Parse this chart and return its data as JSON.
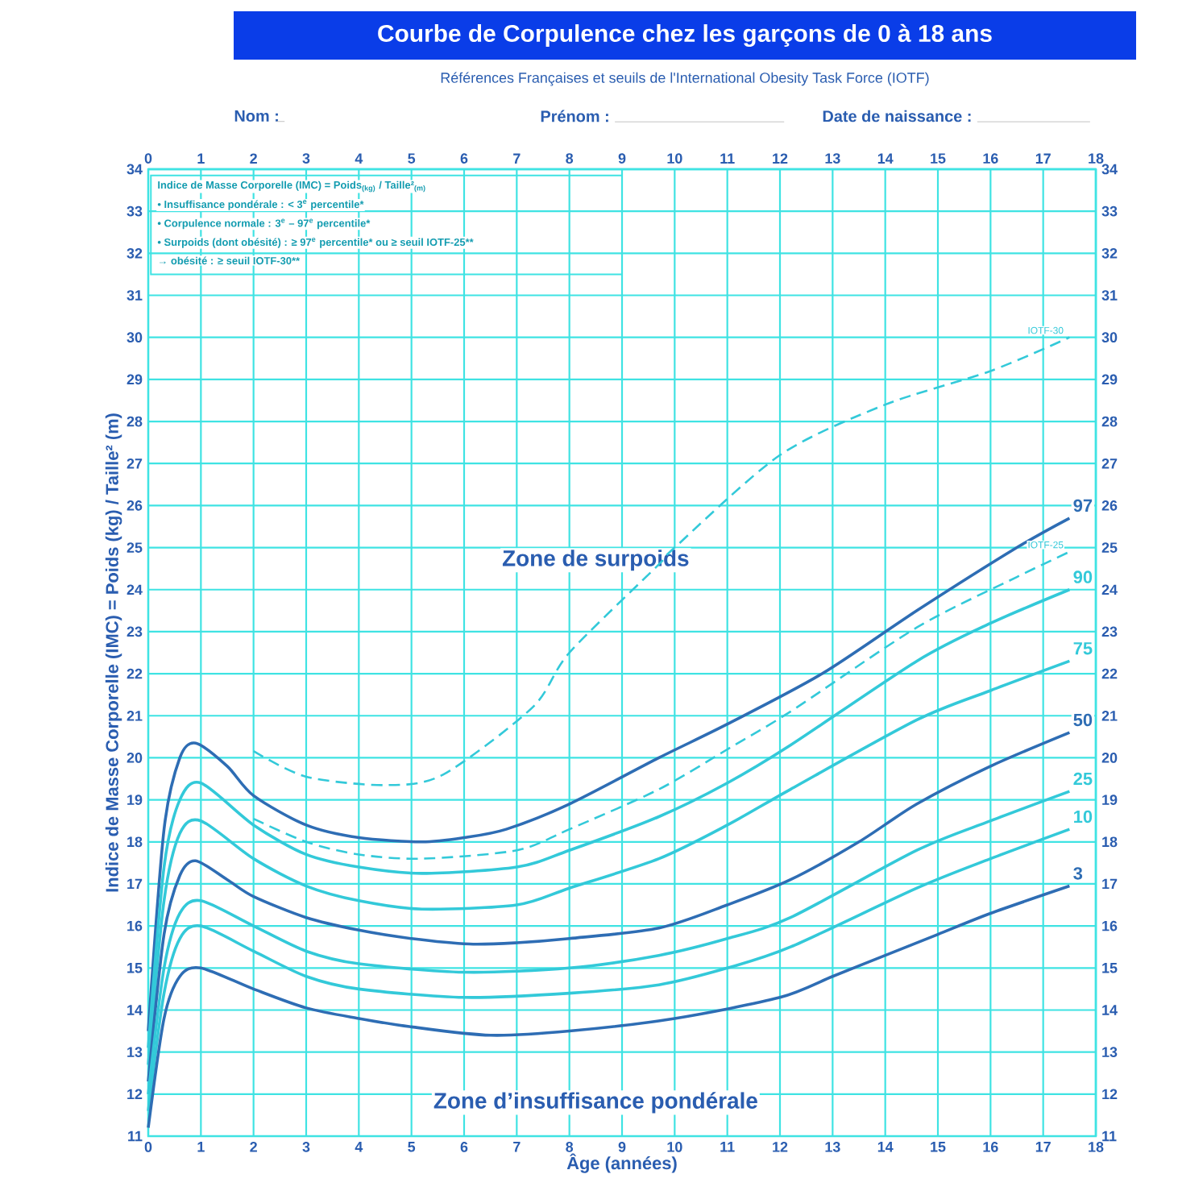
{
  "chart_data": {
    "type": "line",
    "title": "Courbe de Corpulence chez les garçons de 0 à 18 ans",
    "subtitle": "Références Françaises et seuils de l'International Obesity Task Force (IOTF)",
    "xlabel": "Âge (années)",
    "ylabel": "Indice de Masse Corporelle (IMC) = Poids (kg) / Taille² (m)",
    "xlim": [
      0,
      18
    ],
    "xticks": [
      0,
      1,
      2,
      3,
      4,
      5,
      6,
      7,
      8,
      9,
      10,
      11,
      12,
      13,
      14,
      15,
      16,
      17,
      18
    ],
    "x2lim": [
      0,
      18
    ],
    "x2ticks": [
      0,
      1,
      2,
      3,
      4,
      5,
      6,
      7,
      8,
      9,
      10,
      11,
      12,
      13,
      14,
      15,
      16,
      17,
      18
    ],
    "ylim": [
      11,
      34
    ],
    "yticks": [
      11,
      12,
      13,
      14,
      15,
      16,
      17,
      18,
      19,
      20,
      21,
      22,
      23,
      24,
      25,
      26,
      27,
      28,
      29,
      30,
      31,
      32,
      33,
      34
    ],
    "y2lim": [
      11,
      34
    ],
    "y2ticks": [
      11,
      12,
      13,
      14,
      15,
      16,
      17,
      18,
      19,
      20,
      21,
      22,
      23,
      24,
      25,
      26,
      27,
      28,
      29,
      30,
      31,
      32,
      33,
      34
    ],
    "grid": true,
    "series": [
      {
        "name": "97",
        "color": "#2e6db4",
        "line_style": "solid",
        "x": [
          0,
          0.3,
          0.6,
          0.9,
          1.5,
          2,
          3,
          4,
          5.2,
          6,
          6.8,
          8,
          9.7,
          11,
          12.8,
          14.6,
          16.5,
          17.5
        ],
        "values": [
          13.5,
          18.3,
          20.0,
          20.35,
          19.8,
          19.1,
          18.4,
          18.1,
          18.0,
          18.1,
          18.3,
          18.9,
          20.0,
          20.8,
          22.0,
          23.5,
          25.0,
          25.7
        ]
      },
      {
        "name": "90",
        "color": "#33c9d9",
        "line_style": "solid",
        "x": [
          0,
          0.3,
          0.6,
          1,
          2,
          3,
          4,
          5.2,
          7,
          8,
          9.7,
          11,
          12.2,
          14.6,
          16,
          17.5
        ],
        "values": [
          13.1,
          17.4,
          19.0,
          19.4,
          18.4,
          17.7,
          17.4,
          17.25,
          17.4,
          17.8,
          18.6,
          19.4,
          20.3,
          22.3,
          23.2,
          24.0
        ]
      },
      {
        "name": "75",
        "color": "#33c9d9",
        "line_style": "solid",
        "x": [
          0,
          0.3,
          0.6,
          1,
          2,
          3,
          4,
          5.2,
          7,
          8,
          9.7,
          11,
          12.2,
          14.6,
          16,
          17.5
        ],
        "values": [
          12.7,
          16.6,
          18.2,
          18.5,
          17.6,
          16.95,
          16.6,
          16.4,
          16.5,
          16.9,
          17.6,
          18.4,
          19.25,
          20.9,
          21.6,
          22.3
        ]
      },
      {
        "name": "50",
        "color": "#2e6db4",
        "line_style": "solid",
        "x": [
          0,
          0.3,
          0.6,
          0.9,
          1.5,
          2,
          3,
          4,
          5,
          6.1,
          7,
          8,
          9.7,
          11,
          12.2,
          13.5,
          14.6,
          16,
          17.5
        ],
        "values": [
          12.3,
          15.8,
          17.2,
          17.55,
          17.1,
          16.7,
          16.2,
          15.9,
          15.7,
          15.57,
          15.6,
          15.7,
          15.95,
          16.5,
          17.1,
          18.0,
          18.9,
          19.8,
          20.6
        ]
      },
      {
        "name": "25",
        "color": "#33c9d9",
        "line_style": "solid",
        "x": [
          0,
          0.3,
          0.6,
          1,
          2,
          3,
          4,
          6,
          8,
          9.7,
          11,
          12.2,
          14.6,
          16,
          17.5
        ],
        "values": [
          12.0,
          15.0,
          16.3,
          16.6,
          16.0,
          15.4,
          15.1,
          14.9,
          15.0,
          15.3,
          15.7,
          16.2,
          17.8,
          18.5,
          19.2
        ]
      },
      {
        "name": "10",
        "color": "#33c9d9",
        "line_style": "solid",
        "x": [
          0,
          0.3,
          0.6,
          1,
          2,
          3,
          4,
          6,
          8,
          9.7,
          11,
          12.2,
          14.6,
          16,
          17.5
        ],
        "values": [
          11.6,
          14.4,
          15.7,
          16.0,
          15.4,
          14.8,
          14.5,
          14.3,
          14.4,
          14.6,
          15.0,
          15.5,
          16.9,
          17.6,
          18.3
        ]
      },
      {
        "name": "3",
        "color": "#2e6db4",
        "line_style": "solid",
        "x": [
          0,
          0.3,
          0.6,
          1,
          2,
          3,
          4,
          5,
          6.5,
          8,
          10,
          12,
          13,
          14,
          15,
          16,
          17.5
        ],
        "values": [
          11.2,
          13.8,
          14.8,
          15.0,
          14.5,
          14.05,
          13.8,
          13.6,
          13.4,
          13.5,
          13.8,
          14.3,
          14.8,
          15.3,
          15.8,
          16.3,
          16.95
        ]
      },
      {
        "name": "IOTF-25",
        "color": "#33c9d9",
        "line_style": "dashed",
        "x": [
          2,
          3,
          4,
          5.2,
          7,
          8,
          9.7,
          11,
          12.2,
          14.6,
          16.5,
          17.5
        ],
        "values": [
          18.55,
          18.0,
          17.7,
          17.6,
          17.8,
          18.3,
          19.25,
          20.2,
          21.1,
          23.1,
          24.3,
          24.9
        ]
      },
      {
        "name": "IOTF-30",
        "color": "#33c9d9",
        "line_style": "dashed",
        "x": [
          2,
          3,
          4.5,
          5.6,
          7.3,
          8,
          9.7,
          10,
          12,
          14,
          16,
          17.5
        ],
        "values": [
          20.16,
          19.55,
          19.35,
          19.6,
          21.2,
          22.5,
          24.6,
          25.0,
          27.2,
          28.4,
          29.2,
          30.0
        ]
      }
    ],
    "annotations": [
      "Nom :",
      "Prénom :",
      "Date de naissance :",
      "Indice de Masse Corporelle (IMC) = Poids$_{(kg)}$ / Taille²$_{(m)}$",
      "• Insuffisance pondérale : < 3$^{e}$ percentile*",
      "• Corpulence normale : 3$^{e}$ – 97$^{e}$ percentile*",
      "• Surpoids (dont obésité) : ≥ 97$^{e}$ percentile* ou ≥ seuil IOTF-25**",
      "→ obésité : ≥ seuil IOTF-30**",
      "Zone de surpoids",
      "Zone d’insuffisance pondérale"
    ]
  }
}
